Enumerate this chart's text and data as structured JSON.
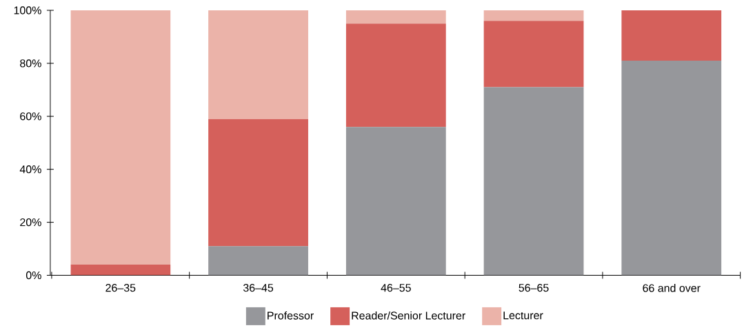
{
  "chart_data": {
    "type": "bar",
    "stacked": true,
    "categories": [
      "26–35",
      "36–45",
      "46–55",
      "56–65",
      "66 and over"
    ],
    "series": [
      {
        "name": "Professor",
        "color": "#96979b",
        "values": [
          0,
          11,
          56,
          71,
          81
        ]
      },
      {
        "name": "Reader/Senior Lecturer",
        "color": "#d5605b",
        "values": [
          4,
          48,
          39,
          25,
          19
        ]
      },
      {
        "name": "Lecturer",
        "color": "#ebb3a9",
        "values": [
          96,
          41,
          5,
          4,
          0
        ]
      }
    ],
    "ylim": [
      0,
      100
    ],
    "yticks": [
      {
        "value": 0,
        "label": "0%"
      },
      {
        "value": 20,
        "label": "20%"
      },
      {
        "value": 40,
        "label": "40%"
      },
      {
        "value": 60,
        "label": "60%"
      },
      {
        "value": 80,
        "label": "80%"
      },
      {
        "value": 100,
        "label": "100%"
      }
    ],
    "grid": false,
    "legend": "bottom"
  }
}
